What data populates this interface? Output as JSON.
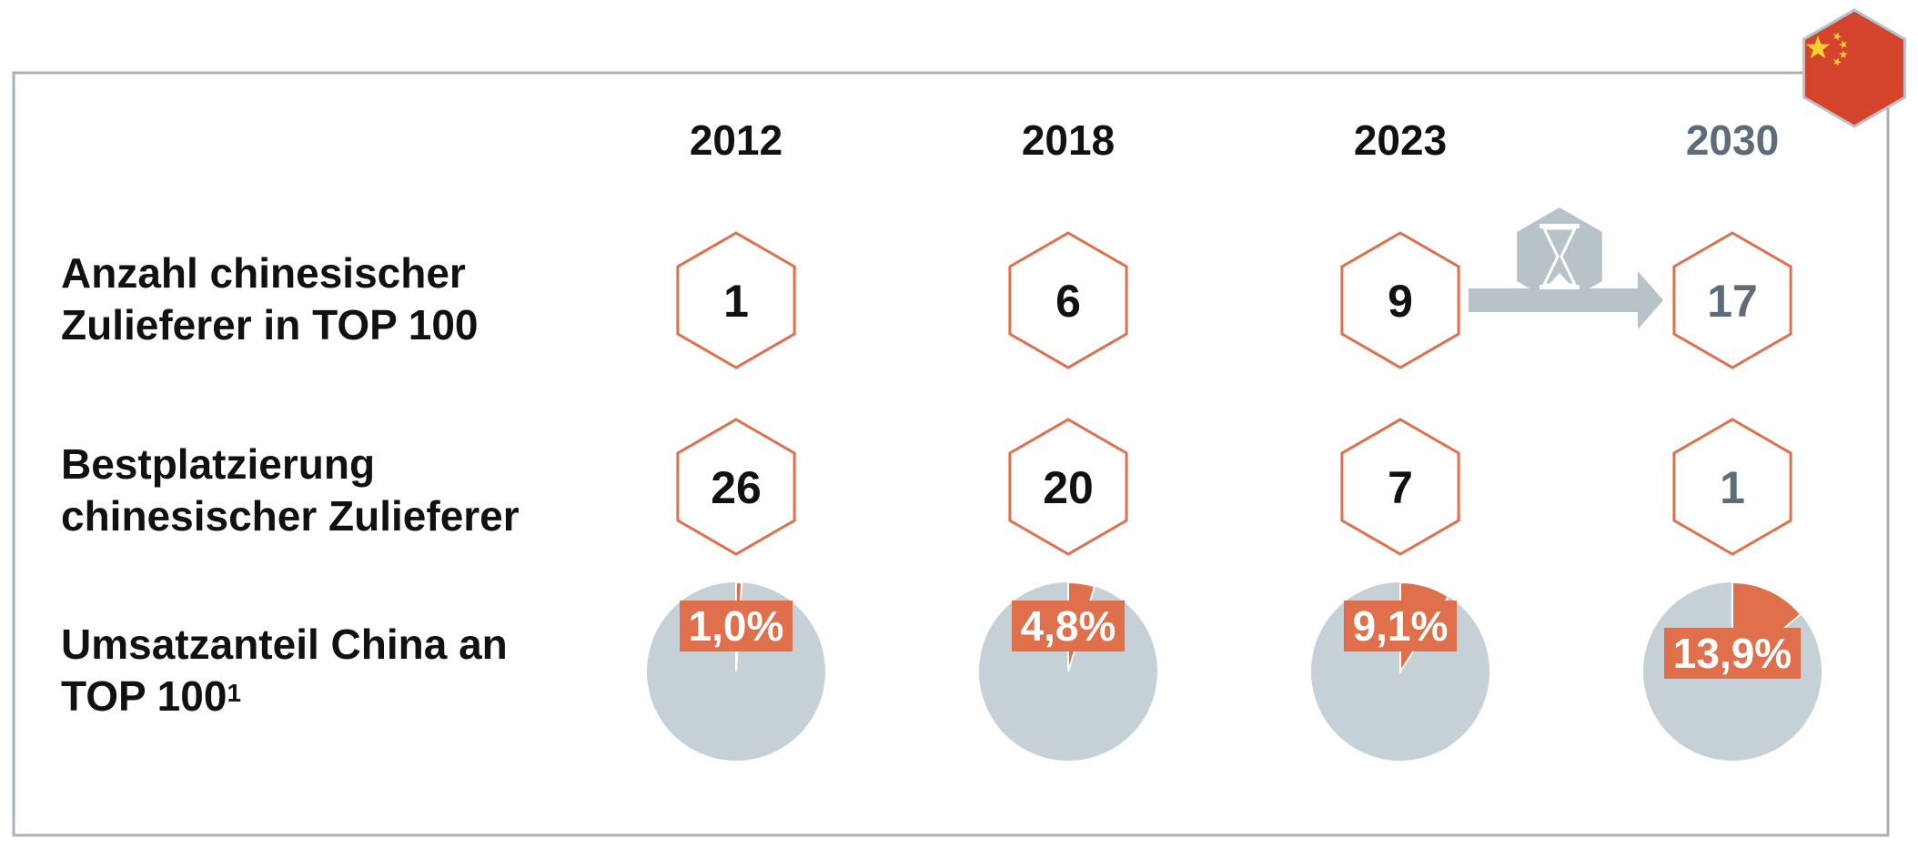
{
  "frame": {
    "border_color": "#a9b1b9"
  },
  "flag": {
    "icon": "china-flag-icon",
    "color": "#d4432b",
    "star_color": "#f3d230"
  },
  "years": [
    {
      "label": "2012",
      "projected": false
    },
    {
      "label": "2018",
      "projected": false
    },
    {
      "label": "2023",
      "projected": false
    },
    {
      "label": "2030",
      "projected": true
    }
  ],
  "rows": {
    "count": {
      "label_line1": "Anzahl chinesischer",
      "label_line2": "Zulieferer in TOP 100"
    },
    "rank": {
      "label_line1": "Bestplatzierung",
      "label_line2": "chinesischer Zulieferer"
    },
    "share": {
      "label_line1": "Umsatzanteil China an",
      "label_line2": "TOP 100",
      "footnote": "1"
    }
  },
  "chart_data": {
    "type": "table",
    "categories": [
      "2012",
      "2018",
      "2023",
      "2030"
    ],
    "series": [
      {
        "name": "Anzahl chinesischer Zulieferer in TOP 100",
        "values": [
          "1",
          "6",
          "9",
          "17"
        ]
      },
      {
        "name": "Bestplatzierung chinesischer Zulieferer",
        "values": [
          "26",
          "20",
          "7",
          "1"
        ]
      },
      {
        "name": "Umsatzanteil China an TOP 100",
        "values": [
          1.0,
          4.8,
          9.1,
          13.9
        ],
        "labels": [
          "1,0%",
          "4,8%",
          "9,1%",
          "13,9%"
        ]
      }
    ]
  },
  "arrow": {
    "icon": "hourglass-icon"
  },
  "colors": {
    "accent": "#e0704b",
    "pie_rest": "#c5d0d7",
    "actual_text": "#111111",
    "projected_text": "#5d6c78",
    "arrow": "#b8c2c9",
    "hourglass_bg": "#b8c2c9"
  }
}
